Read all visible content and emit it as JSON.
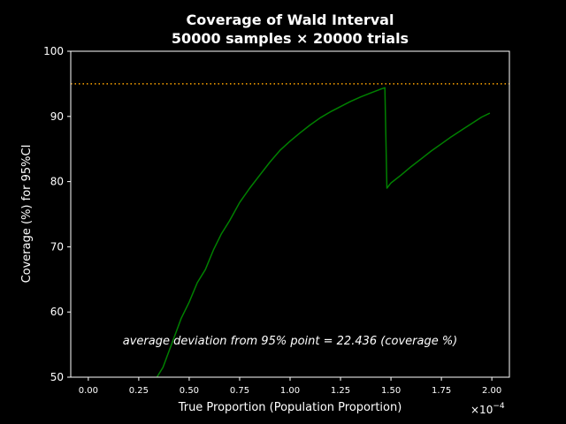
{
  "chart_data": {
    "type": "line",
    "title_line1": "Coverage of Wald Interval",
    "title_line2": "50000 samples × 20000 trials",
    "xlabel": "True Proportion (Population Proportion)",
    "ylabel": "Coverage (%) for 95%CI",
    "x_offset_label": "×10",
    "x_offset_exponent": "−4",
    "annotation": "average deviation from 95% point = 22.436 (coverage %)",
    "xlim": [
      -0.087,
      2.087
    ],
    "ylim": [
      50,
      100
    ],
    "x_ticks": [
      0.0,
      0.25,
      0.5,
      0.75,
      1.0,
      1.25,
      1.5,
      1.75,
      2.0
    ],
    "x_tick_labels": [
      "0.00",
      "0.25",
      "0.50",
      "0.75",
      "1.00",
      "1.25",
      "1.50",
      "1.75",
      "2.00"
    ],
    "y_ticks": [
      50,
      60,
      70,
      80,
      90,
      100
    ],
    "y_tick_labels": [
      "50",
      "60",
      "70",
      "80",
      "90",
      "100"
    ],
    "grid": false,
    "colors": {
      "background": "#000000",
      "axes": "#ffffff",
      "series": "#008000",
      "reference": "#ffa500"
    },
    "reference_line": {
      "y": 95,
      "style": "dotted"
    },
    "series": [
      {
        "x": [
          0.34,
          0.37,
          0.4,
          0.43,
          0.46,
          0.5,
          0.54,
          0.58,
          0.62,
          0.66,
          0.7,
          0.75,
          0.8,
          0.85,
          0.9,
          0.95,
          1.0,
          1.05,
          1.1,
          1.15,
          1.2,
          1.25,
          1.3,
          1.35,
          1.4,
          1.45,
          1.47,
          1.48,
          1.5,
          1.55,
          1.6,
          1.65,
          1.7,
          1.75,
          1.8,
          1.85,
          1.9,
          1.95,
          1.99
        ],
        "y": [
          50.0,
          51.5,
          54.0,
          56.5,
          59.0,
          61.5,
          64.5,
          66.5,
          69.5,
          72.0,
          74.0,
          76.8,
          79.0,
          81.0,
          83.0,
          84.8,
          86.2,
          87.5,
          88.7,
          89.8,
          90.7,
          91.5,
          92.3,
          93.0,
          93.6,
          94.2,
          94.4,
          79.0,
          79.8,
          81.0,
          82.3,
          83.5,
          84.7,
          85.8,
          86.9,
          87.9,
          88.9,
          89.9,
          90.5
        ]
      }
    ]
  }
}
